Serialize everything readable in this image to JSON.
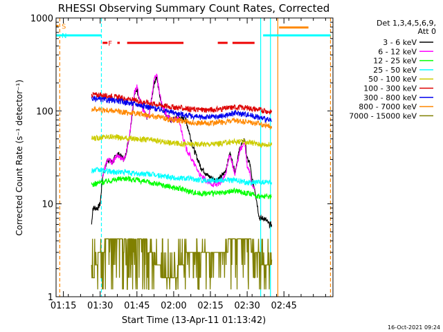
{
  "chart_data": {
    "type": "line",
    "title": "RHESSI Observing Summary Count Rates, Corrected",
    "xlabel": "Start Time (13-Apr-11 01:13:42)",
    "ylabel": "Corrected Count Rate (s⁻¹ detector⁻¹)",
    "x_unit": "minutes after 01:00 UT",
    "xlim": [
      72,
      185
    ],
    "ylim": [
      1,
      1000
    ],
    "y_scale": "log",
    "x_ticks": [
      {
        "value": 75,
        "label": "01:15"
      },
      {
        "value": 90,
        "label": "01:30"
      },
      {
        "value": 105,
        "label": "01:45"
      },
      {
        "value": 120,
        "label": "02:00"
      },
      {
        "value": 135,
        "label": "02:15"
      },
      {
        "value": 150,
        "label": "02:30"
      },
      {
        "value": 165,
        "label": "02:45"
      }
    ],
    "y_ticks": [
      {
        "value": 1,
        "label": "1"
      },
      {
        "value": 10,
        "label": "10"
      },
      {
        "value": 100,
        "label": "100"
      },
      {
        "value": 1000,
        "label": "1000"
      }
    ],
    "legend_header": [
      "Det 1,3,4,5,6,9,",
      "Att 0"
    ],
    "legend_placement": "right, outside plot",
    "series": [
      {
        "name": "3 - 6 keV",
        "color": "#000000",
        "x": [
          86.5,
          87,
          89,
          90,
          91,
          93,
          95,
          97,
          100,
          102,
          104,
          105,
          107,
          109,
          110,
          112,
          113,
          115,
          117,
          119,
          122,
          125,
          128,
          131,
          134,
          137,
          139,
          141,
          143,
          145,
          147,
          149,
          150,
          151,
          152,
          153,
          155,
          157,
          159,
          160
        ],
        "y": [
          6,
          9,
          9,
          10,
          20,
          30,
          28,
          35,
          30,
          55,
          150,
          170,
          110,
          85,
          90,
          200,
          230,
          120,
          90,
          80,
          85,
          80,
          40,
          25,
          20,
          18,
          19,
          22,
          35,
          22,
          40,
          50,
          30,
          28,
          18,
          15,
          7,
          7,
          6,
          6
        ]
      },
      {
        "name": "6 - 12 keV",
        "color": "#ff00ff",
        "x": [
          91,
          93,
          95,
          97,
          100,
          102,
          104,
          105,
          107,
          109,
          110,
          112,
          113,
          115,
          117,
          119,
          122,
          125,
          128,
          131,
          134,
          137,
          139,
          141,
          143,
          145,
          147,
          149,
          150,
          151,
          152,
          153
        ],
        "y": [
          20,
          30,
          28,
          33,
          30,
          55,
          160,
          180,
          110,
          85,
          90,
          220,
          250,
          120,
          90,
          80,
          82,
          40,
          28,
          20,
          17,
          16,
          17,
          20,
          35,
          20,
          38,
          45,
          25,
          22,
          16,
          15
        ]
      },
      {
        "name": "12 - 25 keV",
        "color": "#00ff00",
        "x": [
          86.5,
          90,
          95,
          100,
          105,
          110,
          115,
          120,
          125,
          130,
          135,
          140,
          145,
          150,
          155,
          160
        ],
        "y": [
          16,
          17,
          18,
          19,
          18,
          17,
          16,
          15,
          14,
          13,
          13,
          13,
          14,
          13,
          12,
          12
        ]
      },
      {
        "name": "25 - 50 keV",
        "color": "#00ffff",
        "x": [
          86.5,
          90,
          95,
          100,
          105,
          110,
          115,
          120,
          125,
          130,
          135,
          140,
          145,
          150,
          155,
          160
        ],
        "y": [
          23,
          23,
          22,
          22,
          21,
          21,
          20,
          19,
          19,
          18,
          18,
          18,
          18,
          17,
          17,
          17
        ]
      },
      {
        "name": "50 - 100 keV",
        "color": "#cccc00",
        "x": [
          86.5,
          90,
          95,
          100,
          105,
          110,
          115,
          120,
          125,
          130,
          135,
          140,
          145,
          150,
          155,
          160
        ],
        "y": [
          50,
          52,
          53,
          51,
          50,
          49,
          47,
          45,
          44,
          44,
          44,
          45,
          47,
          46,
          44,
          43
        ]
      },
      {
        "name": "100 - 300 keV",
        "color": "#dd0000",
        "x": [
          86.5,
          90,
          95,
          100,
          105,
          110,
          115,
          120,
          125,
          130,
          135,
          140,
          145,
          150,
          155,
          160
        ],
        "y": [
          150,
          148,
          143,
          135,
          128,
          122,
          115,
          110,
          106,
          103,
          103,
          105,
          110,
          108,
          103,
          97
        ]
      },
      {
        "name": "300 - 800 keV",
        "color": "#0000ee",
        "x": [
          86.5,
          90,
          95,
          100,
          105,
          110,
          115,
          120,
          125,
          130,
          135,
          140,
          145,
          150,
          155,
          160
        ],
        "y": [
          135,
          133,
          130,
          125,
          118,
          110,
          103,
          96,
          90,
          86,
          86,
          88,
          95,
          92,
          85,
          78
        ]
      },
      {
        "name": "800 - 7000 keV",
        "color": "#ff8800",
        "x": [
          86.5,
          90,
          95,
          100,
          105,
          110,
          115,
          120,
          125,
          130,
          135,
          140,
          145,
          150,
          155,
          160
        ],
        "y": [
          105,
          103,
          100,
          97,
          94,
          90,
          85,
          80,
          77,
          74,
          74,
          76,
          78,
          76,
          72,
          68
        ]
      },
      {
        "name": "7000 - 15000 keV",
        "color": "#808000",
        "x": [
          86.5,
          90,
          93,
          96,
          99,
          102,
          105,
          108,
          111,
          114,
          117,
          120,
          123,
          126,
          129,
          132,
          135,
          138,
          141,
          144,
          147,
          150,
          153,
          156,
          159,
          160
        ],
        "y": [
          1.5,
          3.0,
          4.0,
          4.5,
          4.5,
          4.0,
          4.5,
          4.0,
          3.0,
          2.0,
          1.5,
          1.6,
          2.2,
          3.0,
          3.2,
          3.0,
          3.5,
          3.0,
          3.2,
          4.2,
          4.5,
          4.2,
          3.0,
          2.5,
          2.5,
          2.5
        ]
      }
    ],
    "status_bars": [
      {
        "label": "S",
        "color": "#ff8800",
        "value": 820,
        "segments": [
          [
            72,
            73
          ]
        ]
      },
      {
        "label": "N",
        "color": "#00ffff",
        "value": 650,
        "segments": [
          [
            72,
            90.5
          ],
          [
            156.5,
            184
          ]
        ]
      },
      {
        "label": "F",
        "color": "#ee0000",
        "value": 540,
        "segments": [
          [
            91,
            93
          ],
          [
            97,
            98
          ],
          [
            101,
            124
          ],
          [
            138,
            142
          ],
          [
            144,
            153
          ]
        ]
      },
      {
        "label": "",
        "color": "#ff8800",
        "value": 790,
        "segments": [
          [
            163,
            175
          ]
        ]
      }
    ],
    "vertical_markers": [
      {
        "x": 73.5,
        "color": "#ff8800",
        "style": "dashed"
      },
      {
        "x": 90.5,
        "color": "#00ffff",
        "style": "dashed"
      },
      {
        "x": 155.5,
        "color": "#00ffff",
        "style": "solid"
      },
      {
        "x": 159.5,
        "color": "#00ffff",
        "style": "solid"
      },
      {
        "x": 162.5,
        "color": "#ff8800",
        "style": "solid"
      },
      {
        "x": 184,
        "color": "#ff8800",
        "style": "dashed"
      }
    ]
  },
  "footer": {
    "timestamp": "16-Oct-2021 09:24"
  }
}
